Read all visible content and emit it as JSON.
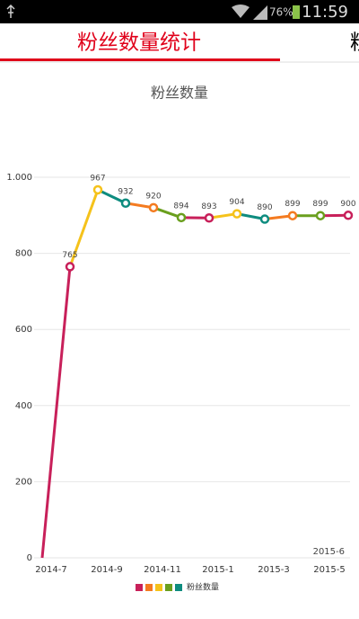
{
  "status_bar": {
    "battery": "76%",
    "time": "11:59"
  },
  "tabs": {
    "active": "粉丝数量统计",
    "next": "粉"
  },
  "chart_data": {
    "type": "line",
    "title": "粉丝数量",
    "categories": [
      "2014-7",
      null,
      "2014-9",
      null,
      "2014-11",
      null,
      "2015-1",
      null,
      "2015-3",
      null,
      "2015-5",
      null
    ],
    "series": [
      {
        "name": "粉丝数量",
        "colors": [
          "#c8205a",
          "#f5c21b",
          "#0e8c7f",
          "#f47b20",
          "#6a9f1e"
        ],
        "legend_colors": [
          "#c8205a",
          "#f47b20",
          "#f5c21b",
          "#6a9f1e",
          "#0e8c7f"
        ],
        "values": [
          0,
          765,
          967,
          932,
          920,
          894,
          893,
          904,
          890,
          899,
          899,
          900
        ],
        "value_labels": [
          null,
          "765",
          "967",
          "932",
          "920",
          "894",
          "893",
          "904",
          "890",
          "899",
          "899",
          "900"
        ]
      }
    ],
    "ylim": [
      0,
      1000
    ],
    "yticks": [
      0,
      200,
      400,
      600,
      800,
      {
        "value": 1000,
        "label": "1.000"
      }
    ],
    "grid": true,
    "annotation": "2015-6"
  }
}
